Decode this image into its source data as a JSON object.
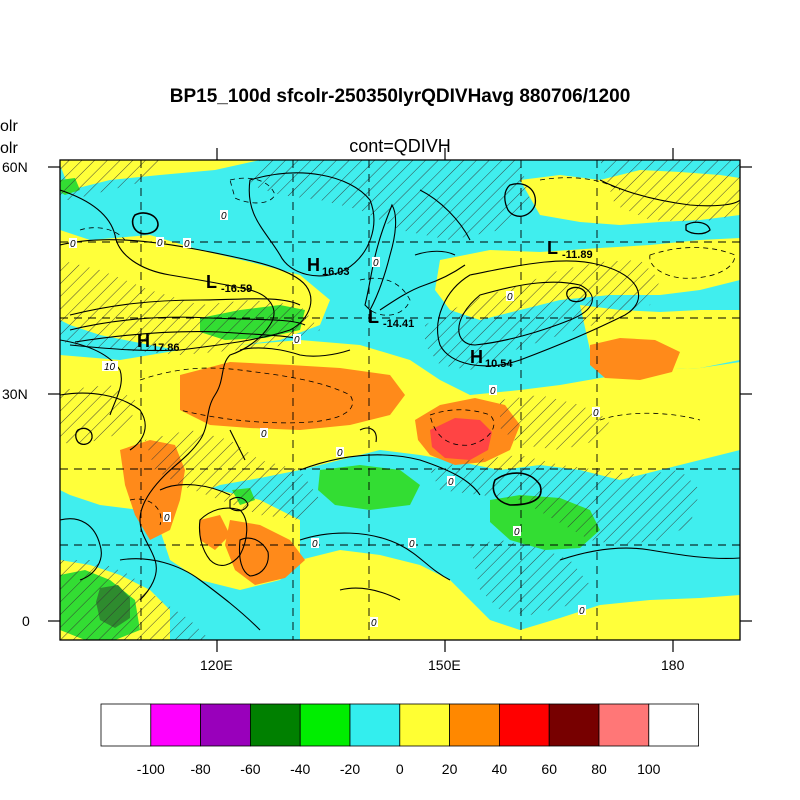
{
  "header": {
    "title": "BP15_100d sfcolr-250350lyrQDIVHavg  880706/1200",
    "subtitle": "cont=QDIVH",
    "left_stub_1": "olr",
    "left_stub_2": "olr"
  },
  "axes": {
    "lat_labels": [
      "60N",
      "30N",
      "0"
    ],
    "lon_labels": [
      "120E",
      "150E",
      "180"
    ]
  },
  "markers": [
    {
      "letter": "H",
      "value": "16.03"
    },
    {
      "letter": "L",
      "value": "-16.59"
    },
    {
      "letter": "L",
      "value": "-14.41"
    },
    {
      "letter": "H",
      "value": "17.86"
    },
    {
      "letter": "H",
      "value": "10.54"
    },
    {
      "letter": "L",
      "value": "-11.89"
    }
  ],
  "contour_labels": [
    "0",
    "10"
  ],
  "colorbar": {
    "labels": [
      "-100",
      "-80",
      "-60",
      "-40",
      "-20",
      "0",
      "20",
      "40",
      "60",
      "80",
      "100"
    ],
    "colors": [
      "#ffffff",
      "#ff00ff",
      "#9900bb",
      "#008000",
      "#00ee00",
      "#33eeee",
      "#ffff33",
      "#ff8800",
      "#ff0000",
      "#770000",
      "#ff7777",
      "#ffffff"
    ]
  },
  "colors": {
    "cyan": "#40eeee",
    "yellow": "#ffff3a",
    "orange": "#ff8a1a",
    "red": "#ff4444",
    "green": "#33dd33",
    "dark_green": "#2e8b2e"
  }
}
